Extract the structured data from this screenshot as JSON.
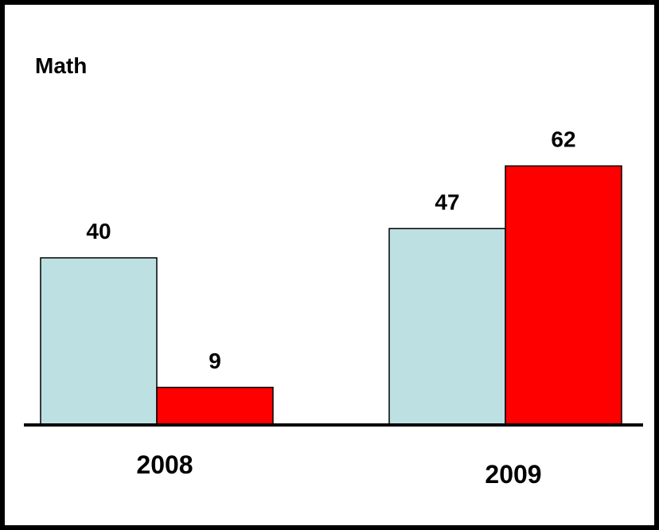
{
  "chart_data": {
    "type": "bar",
    "title": "Math",
    "categories": [
      "2008",
      "2009"
    ],
    "series": [
      {
        "values": [
          40,
          47
        ],
        "color": "#BDE0E3"
      },
      {
        "values": [
          9,
          62
        ],
        "color": "#FF0000"
      }
    ],
    "ylim": [
      0,
      100
    ],
    "grid": false,
    "legend": "none"
  }
}
